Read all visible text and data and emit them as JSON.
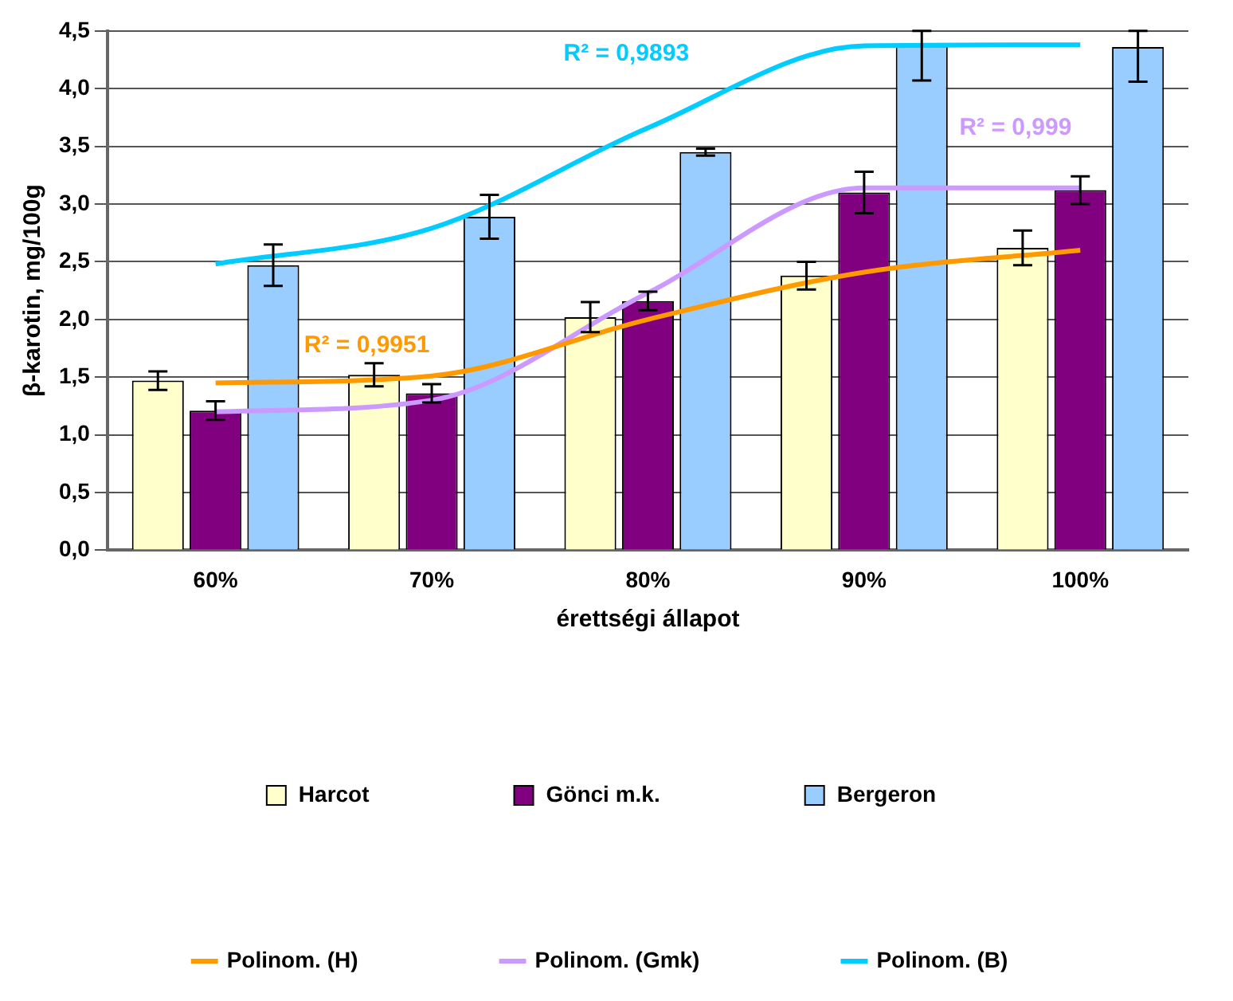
{
  "chart_data": {
    "type": "bar",
    "xlabel": "érettségi állapot",
    "ylabel": "β-karotin, mg/100g",
    "categories": [
      "60%",
      "70%",
      "80%",
      "90%",
      "100%"
    ],
    "series": [
      {
        "name": "Harcot",
        "color": "#ffffcc",
        "values": [
          1.47,
          1.52,
          2.02,
          2.38,
          2.62
        ],
        "errors": [
          0.08,
          0.1,
          0.13,
          0.12,
          0.15
        ]
      },
      {
        "name": "Gönci m.k.",
        "color": "#800080",
        "values": [
          1.21,
          1.36,
          2.16,
          3.1,
          3.12
        ],
        "errors": [
          0.08,
          0.08,
          0.08,
          0.18,
          0.12
        ]
      },
      {
        "name": "Bergeron",
        "color": "#99ccff",
        "values": [
          2.47,
          2.89,
          3.45,
          4.37,
          4.36
        ],
        "errors": [
          0.18,
          0.19,
          0.03,
          [
            4.07,
            4.5
          ],
          [
            4.06,
            4.5
          ]
        ]
      },
      {
        "name": "Polinom. (H)",
        "type": "line",
        "color": "#ff9900",
        "values": [
          1.45,
          1.51,
          2.0,
          2.41,
          2.6
        ]
      },
      {
        "name": "Polinom. (Gmk)",
        "type": "line",
        "color": "#cc99ff",
        "values": [
          1.2,
          1.3,
          2.23,
          3.14,
          3.14
        ]
      },
      {
        "name": "Polinom. (B)",
        "type": "line",
        "color": "#00ccff",
        "values": [
          2.48,
          2.79,
          3.66,
          4.37,
          4.38
        ]
      }
    ],
    "ylim": [
      0,
      4.5
    ],
    "yticks": [
      {
        "value": 0,
        "label": "0,0"
      },
      {
        "value": 0.5,
        "label": "0,5"
      },
      {
        "value": 1,
        "label": "1,0"
      },
      {
        "value": 1.5,
        "label": "1,5"
      },
      {
        "value": 2,
        "label": "2,0"
      },
      {
        "value": 2.5,
        "label": "2,5"
      },
      {
        "value": 3,
        "label": "3,0"
      },
      {
        "value": 3.5,
        "label": "3,5"
      },
      {
        "value": 4,
        "label": "4,0"
      },
      {
        "value": 4.5,
        "label": "4,5"
      }
    ],
    "grid": "y",
    "legend": "bottom",
    "marker": "none",
    "line_style": "solid",
    "annotations": [
      "R² = 0,9951",
      "R² = 0,999",
      "R² = 0,9893"
    ]
  }
}
